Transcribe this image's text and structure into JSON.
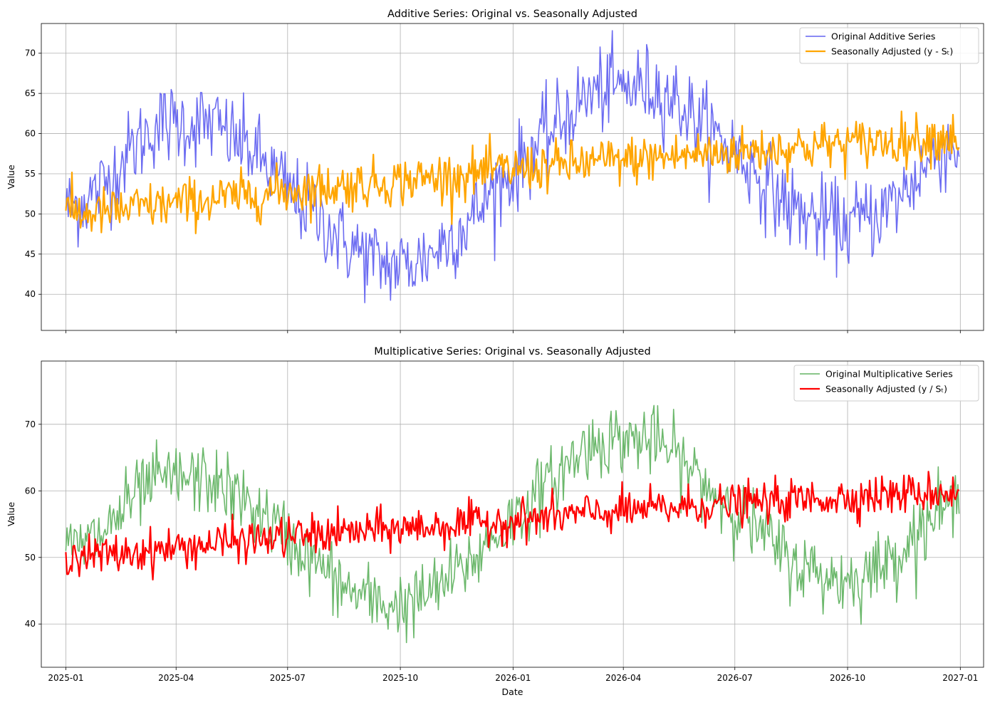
{
  "chart_data": [
    {
      "type": "line",
      "title": "Additive Series: Original vs. Seasonally Adjusted",
      "xlabel": "",
      "ylabel": "Value",
      "xlim": [
        "2024-12-12",
        "2027-01-20"
      ],
      "ylim": [
        35.5,
        73.7
      ],
      "yticks": [
        40,
        45,
        50,
        55,
        60,
        65,
        70
      ],
      "xticks": [
        "2025-01",
        "2025-04",
        "2025-07",
        "2025-10",
        "2026-01",
        "2026-04",
        "2026-07",
        "2026-10",
        "2027-01"
      ],
      "show_xtick_labels": false,
      "grid": true,
      "legend_placement": "top-right",
      "series": [
        {
          "name": "Original Additive Series",
          "color": "#6464f0",
          "style": "thin",
          "points": [
            [
              "2025-01-01",
              50.6
            ],
            [
              "2025-01-15",
              51.5
            ],
            [
              "2025-02-01",
              53.5
            ],
            [
              "2025-02-15",
              56.5
            ],
            [
              "2025-03-01",
              58.8
            ],
            [
              "2025-03-15",
              61.0
            ],
            [
              "2025-04-01",
              61.3
            ],
            [
              "2025-04-15",
              61.2
            ],
            [
              "2025-05-01",
              61.2
            ],
            [
              "2025-05-15",
              59.6
            ],
            [
              "2025-06-01",
              58.0
            ],
            [
              "2025-06-15",
              55.8
            ],
            [
              "2025-07-01",
              53.0
            ],
            [
              "2025-07-15",
              51.0
            ],
            [
              "2025-08-01",
              48.9
            ],
            [
              "2025-08-15",
              46.5
            ],
            [
              "2025-09-01",
              45.0
            ],
            [
              "2025-09-15",
              43.8
            ],
            [
              "2025-10-01",
              43.5
            ],
            [
              "2025-10-15",
              44.0
            ],
            [
              "2025-11-01",
              45.8
            ],
            [
              "2025-11-15",
              47.6
            ],
            [
              "2025-12-01",
              49.8
            ],
            [
              "2025-12-15",
              53.0
            ],
            [
              "2026-01-01",
              55.0
            ],
            [
              "2026-01-15",
              57.8
            ],
            [
              "2026-02-01",
              60.2
            ],
            [
              "2026-02-15",
              62.5
            ],
            [
              "2026-03-01",
              64.5
            ],
            [
              "2026-03-15",
              65.5
            ],
            [
              "2026-04-01",
              65.7
            ],
            [
              "2026-04-15",
              65.9
            ],
            [
              "2026-05-01",
              65.5
            ],
            [
              "2026-05-15",
              64.0
            ],
            [
              "2026-06-01",
              61.6
            ],
            [
              "2026-06-15",
              59.5
            ],
            [
              "2026-07-01",
              58.0
            ],
            [
              "2026-07-15",
              55.5
            ],
            [
              "2026-08-01",
              53.0
            ],
            [
              "2026-08-15",
              50.8
            ],
            [
              "2026-09-01",
              49.5
            ],
            [
              "2026-09-15",
              49.0
            ],
            [
              "2026-10-01",
              48.5
            ],
            [
              "2026-10-15",
              49.5
            ],
            [
              "2026-11-01",
              50.5
            ],
            [
              "2026-11-15",
              52.5
            ],
            [
              "2026-12-01",
              55.5
            ],
            [
              "2026-12-15",
              58.0
            ],
            [
              "2026-12-31",
              58.5
            ]
          ]
        },
        {
          "name": "Seasonally Adjusted (y - Sₜ)",
          "color": "#ffa500",
          "style": "thick",
          "points": [
            [
              "2025-01-01",
              50.4
            ],
            [
              "2025-01-15",
              50.0
            ],
            [
              "2025-02-01",
              50.2
            ],
            [
              "2025-02-15",
              50.4
            ],
            [
              "2025-03-01",
              50.7
            ],
            [
              "2025-03-15",
              51.0
            ],
            [
              "2025-04-01",
              51.3
            ],
            [
              "2025-04-15",
              51.5
            ],
            [
              "2025-05-01",
              51.8
            ],
            [
              "2025-05-15",
              52.0
            ],
            [
              "2025-06-01",
              52.3
            ],
            [
              "2025-06-15",
              52.6
            ],
            [
              "2025-07-01",
              52.9
            ],
            [
              "2025-07-15",
              53.1
            ],
            [
              "2025-08-01",
              53.3
            ],
            [
              "2025-08-15",
              53.5
            ],
            [
              "2025-09-01",
              53.7
            ],
            [
              "2025-09-15",
              53.9
            ],
            [
              "2025-10-01",
              54.1
            ],
            [
              "2025-10-15",
              54.3
            ],
            [
              "2025-11-01",
              54.6
            ],
            [
              "2025-11-15",
              54.8
            ],
            [
              "2025-12-01",
              55.0
            ],
            [
              "2025-12-15",
              55.3
            ],
            [
              "2026-01-01",
              55.5
            ],
            [
              "2026-01-15",
              55.7
            ],
            [
              "2026-02-01",
              55.9
            ],
            [
              "2026-02-15",
              56.1
            ],
            [
              "2026-03-01",
              56.3
            ],
            [
              "2026-03-15",
              56.5
            ],
            [
              "2026-04-01",
              56.6
            ],
            [
              "2026-04-15",
              56.8
            ],
            [
              "2026-05-01",
              57.0
            ],
            [
              "2026-05-15",
              57.2
            ],
            [
              "2026-06-01",
              57.4
            ],
            [
              "2026-06-15",
              57.6
            ],
            [
              "2026-07-01",
              57.7
            ],
            [
              "2026-07-15",
              57.9
            ],
            [
              "2026-08-01",
              58.1
            ],
            [
              "2026-08-15",
              58.3
            ],
            [
              "2026-09-01",
              58.4
            ],
            [
              "2026-09-15",
              58.6
            ],
            [
              "2026-10-01",
              58.7
            ],
            [
              "2026-10-15",
              58.9
            ],
            [
              "2026-11-01",
              59.0
            ],
            [
              "2026-11-15",
              59.2
            ],
            [
              "2026-12-01",
              59.4
            ],
            [
              "2026-12-15",
              59.6
            ],
            [
              "2026-12-31",
              59.6
            ]
          ]
        }
      ]
    },
    {
      "type": "line",
      "title": "Multiplicative Series: Original vs. Seasonally Adjusted",
      "xlabel": "Date",
      "ylabel": "Value",
      "xlim": [
        "2024-12-12",
        "2027-01-20"
      ],
      "ylim": [
        33.5,
        79.5
      ],
      "yticks": [
        40,
        50,
        60,
        70
      ],
      "xticks": [
        "2025-01",
        "2025-04",
        "2025-07",
        "2025-10",
        "2026-01",
        "2026-04",
        "2026-07",
        "2026-10",
        "2027-01"
      ],
      "show_xtick_labels": true,
      "grid": true,
      "legend_placement": "top-right",
      "series": [
        {
          "name": "Original Multiplicative Series",
          "color": "#64b464",
          "style": "thin",
          "points": [
            [
              "2025-01-01",
              51.0
            ],
            [
              "2025-01-15",
              51.8
            ],
            [
              "2025-02-01",
              53.8
            ],
            [
              "2025-02-15",
              56.8
            ],
            [
              "2025-03-01",
              59.5
            ],
            [
              "2025-03-15",
              61.5
            ],
            [
              "2025-04-01",
              61.8
            ],
            [
              "2025-04-15",
              61.8
            ],
            [
              "2025-05-01",
              61.5
            ],
            [
              "2025-05-15",
              59.8
            ],
            [
              "2025-06-01",
              57.8
            ],
            [
              "2025-06-15",
              55.5
            ],
            [
              "2025-07-01",
              53.0
            ],
            [
              "2025-07-15",
              50.5
            ],
            [
              "2025-08-01",
              48.0
            ],
            [
              "2025-08-15",
              45.5
            ],
            [
              "2025-09-01",
              44.0
            ],
            [
              "2025-09-15",
              43.0
            ],
            [
              "2025-10-01",
              42.8
            ],
            [
              "2025-10-15",
              43.5
            ],
            [
              "2025-11-01",
              45.5
            ],
            [
              "2025-11-15",
              47.5
            ],
            [
              "2025-12-01",
              49.8
            ],
            [
              "2025-12-15",
              53.0
            ],
            [
              "2026-01-01",
              55.5
            ],
            [
              "2026-01-15",
              58.5
            ],
            [
              "2026-02-01",
              61.2
            ],
            [
              "2026-02-15",
              64.0
            ],
            [
              "2026-03-01",
              66.5
            ],
            [
              "2026-03-15",
              67.5
            ],
            [
              "2026-04-01",
              67.8
            ],
            [
              "2026-04-15",
              67.8
            ],
            [
              "2026-05-01",
              67.0
            ],
            [
              "2026-05-15",
              65.0
            ],
            [
              "2026-06-01",
              62.0
            ],
            [
              "2026-06-15",
              59.5
            ],
            [
              "2026-07-01",
              57.5
            ],
            [
              "2026-07-15",
              54.8
            ],
            [
              "2026-08-01",
              52.0
            ],
            [
              "2026-08-15",
              49.5
            ],
            [
              "2026-09-01",
              48.0
            ],
            [
              "2026-09-15",
              47.0
            ],
            [
              "2026-10-01",
              46.5
            ],
            [
              "2026-10-15",
              47.5
            ],
            [
              "2026-11-01",
              49.0
            ],
            [
              "2026-11-15",
              51.5
            ],
            [
              "2026-12-01",
              54.5
            ],
            [
              "2026-12-15",
              57.0
            ],
            [
              "2026-12-31",
              57.8
            ]
          ]
        },
        {
          "name": "Seasonally Adjusted (y / Sₜ)",
          "color": "#ff0000",
          "style": "thick",
          "points": [
            [
              "2025-01-01",
              50.8
            ],
            [
              "2025-01-15",
              50.2
            ],
            [
              "2025-02-01",
              50.3
            ],
            [
              "2025-02-15",
              50.5
            ],
            [
              "2025-03-01",
              50.8
            ],
            [
              "2025-03-15",
              51.1
            ],
            [
              "2025-04-01",
              51.4
            ],
            [
              "2025-04-15",
              51.7
            ],
            [
              "2025-05-01",
              52.0
            ],
            [
              "2025-05-15",
              52.3
            ],
            [
              "2025-06-01",
              52.6
            ],
            [
              "2025-06-15",
              52.8
            ],
            [
              "2025-07-01",
              53.1
            ],
            [
              "2025-07-15",
              53.3
            ],
            [
              "2025-08-01",
              53.5
            ],
            [
              "2025-08-15",
              53.7
            ],
            [
              "2025-09-01",
              53.9
            ],
            [
              "2025-09-15",
              54.1
            ],
            [
              "2025-10-01",
              54.3
            ],
            [
              "2025-10-15",
              54.5
            ],
            [
              "2025-11-01",
              54.7
            ],
            [
              "2025-11-15",
              54.9
            ],
            [
              "2025-12-01",
              55.1
            ],
            [
              "2025-12-15",
              55.3
            ],
            [
              "2026-01-01",
              55.5
            ],
            [
              "2026-01-15",
              55.8
            ],
            [
              "2026-02-01",
              56.0
            ],
            [
              "2026-02-15",
              56.3
            ],
            [
              "2026-03-01",
              56.5
            ],
            [
              "2026-03-15",
              56.7
            ],
            [
              "2026-04-01",
              56.9
            ],
            [
              "2026-04-15",
              57.1
            ],
            [
              "2026-05-01",
              57.3
            ],
            [
              "2026-05-15",
              57.5
            ],
            [
              "2026-06-01",
              57.7
            ],
            [
              "2026-06-15",
              57.9
            ],
            [
              "2026-07-01",
              58.0
            ],
            [
              "2026-07-15",
              58.2
            ],
            [
              "2026-08-01",
              58.4
            ],
            [
              "2026-08-15",
              58.5
            ],
            [
              "2026-09-01",
              58.7
            ],
            [
              "2026-09-15",
              58.9
            ],
            [
              "2026-10-01",
              59.0
            ],
            [
              "2026-10-15",
              59.2
            ],
            [
              "2026-11-01",
              59.4
            ],
            [
              "2026-11-15",
              59.5
            ],
            [
              "2026-12-01",
              59.7
            ],
            [
              "2026-12-15",
              59.8
            ],
            [
              "2026-12-31",
              59.8
            ]
          ]
        }
      ]
    }
  ]
}
